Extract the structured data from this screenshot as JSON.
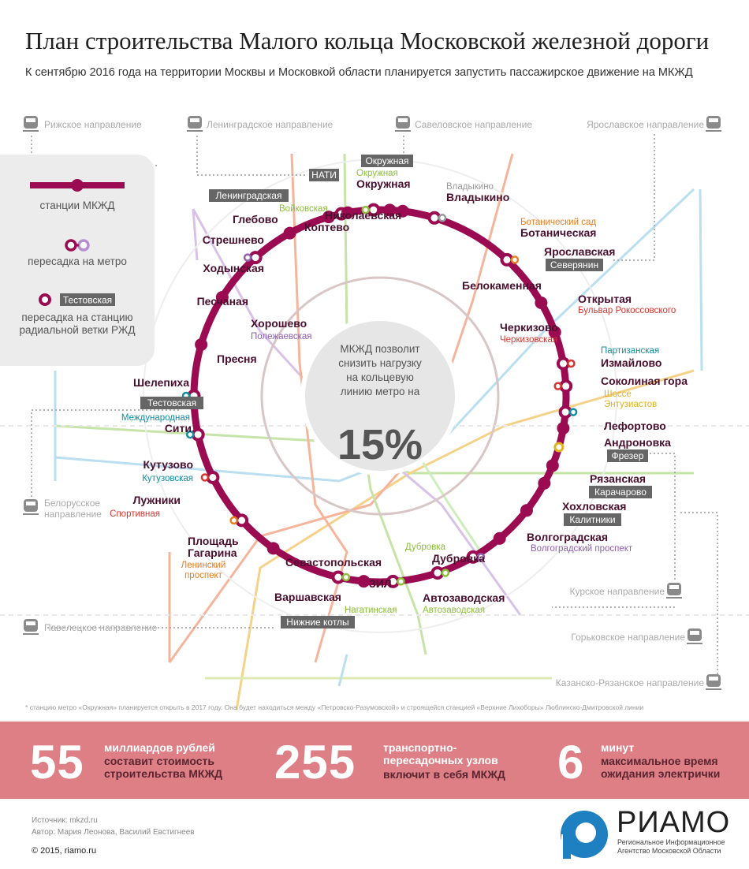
{
  "title": "План строительства Малого кольца Московской железной дороги",
  "subtitle": "К сентябрю 2016 года на территории Москвы и Московкой области планируется запустить пассажирское движение на МКЖД",
  "colors": {
    "ring": "#9a0b51",
    "rail": "#b0b0b0",
    "stats_bg": "#de7f86",
    "gray_tag": "#666666",
    "logo_blue": "#1e7fc1"
  },
  "legend": {
    "mkzd_stations": "станции МКЖД",
    "metro_transfer": "пересадка на метро",
    "rail_tag": "Тестовская",
    "rail_transfer": "пересадка на станцию радиальной ветки РЖД"
  },
  "directions": [
    {
      "name": "Рижское направление"
    },
    {
      "name": "Ленинградское направление"
    },
    {
      "name": "Савеловское направление"
    },
    {
      "name": "Ярославское направление"
    },
    {
      "name": "Белорусское направление"
    },
    {
      "name": "Курское направление"
    },
    {
      "name": "Павелецкое направление"
    },
    {
      "name": "Горьковское направление"
    },
    {
      "name": "Казанско-Рязанское направление"
    }
  ],
  "stations": [
    {
      "name": "Окружная",
      "metro": "Окружная",
      "rail": "Окружная"
    },
    {
      "name": "Владыкино",
      "metro": "Владыкино"
    },
    {
      "name": "Ботаническая",
      "metro": "Ботанический сад"
    },
    {
      "name": "Ярославская",
      "rail": "Северянин"
    },
    {
      "name": "Белокаменная"
    },
    {
      "name": "Открытая",
      "metro": "Бульвар Рокоссовского"
    },
    {
      "name": "Черкизово",
      "metro": "Черкизовская"
    },
    {
      "name": "Измайлово",
      "metro": "Партизанская"
    },
    {
      "name": "Соколиная гора"
    },
    {
      "name": "",
      "metro": "Шоссе Энтузиастов"
    },
    {
      "name": "Лефортово"
    },
    {
      "name": "Андроновка",
      "rail": "Фрезер"
    },
    {
      "name": "Рязанская",
      "rail": "Карачарово"
    },
    {
      "name": "Хохловская",
      "rail": "Калитники"
    },
    {
      "name": "Волгоградская",
      "metro": "Волгоградский проспект"
    },
    {
      "name": "Дубровка",
      "metro": "Дубровка"
    },
    {
      "name": "Автозаводская",
      "metro": "Автозаводская"
    },
    {
      "name": "ЗИЛ"
    },
    {
      "name": "Варшавская",
      "metro": "Нагатинская",
      "rail": "Нижние котлы"
    },
    {
      "name": "Севастопольская"
    },
    {
      "name": "Площадь Гагарина",
      "metro": "Ленинский проспект"
    },
    {
      "name": "Лужники",
      "metro": "Спортивная"
    },
    {
      "name": "Кутузово",
      "metro": "Кутузовская"
    },
    {
      "name": "Сити",
      "metro": "Международная",
      "rail": "Тестовская"
    },
    {
      "name": "Шелепиха"
    },
    {
      "name": "Пресня"
    },
    {
      "name": "Хорошево",
      "metro": "Полежаевская"
    },
    {
      "name": "Песчаная"
    },
    {
      "name": "Ходынская"
    },
    {
      "name": "Стрешнево"
    },
    {
      "name": "Глебово",
      "metro": "Войковская",
      "rail": "Ленинградская"
    },
    {
      "name": "Коптево"
    },
    {
      "name": "Николаевская",
      "rail": "НАТИ"
    }
  ],
  "center": {
    "text": "МКЖД позволит снизить нагрузку на кольцевую линию метро на",
    "value": "15%"
  },
  "footnote_mark": "*",
  "footnote": "станцию метро «Окружная» планируется открыть в 2017 году. Она будет находиться между «Петровско-Разумовской» и строящейся станцией «Верхние Лихоборы» Люблинско-Дмитровской линии",
  "stats": [
    {
      "value": "55",
      "title": "миллиардов рублей",
      "text": "составит стоимость строительства МКЖД"
    },
    {
      "value": "255",
      "title": "транспортно-пересадочных узлов",
      "text": "включит в себя МКЖД"
    },
    {
      "value": "6",
      "title": "минут",
      "text": "максимальное время ожидания электрички"
    }
  ],
  "source": "Источник: mkzd.ru",
  "authors": "Автор: Мария Леонова, Василий Евстигнеев",
  "copyright": "© 2015, riamo.ru",
  "logo": {
    "name": "РИАМО",
    "desc": "Региональное Информационное Агентство Московской Области"
  }
}
